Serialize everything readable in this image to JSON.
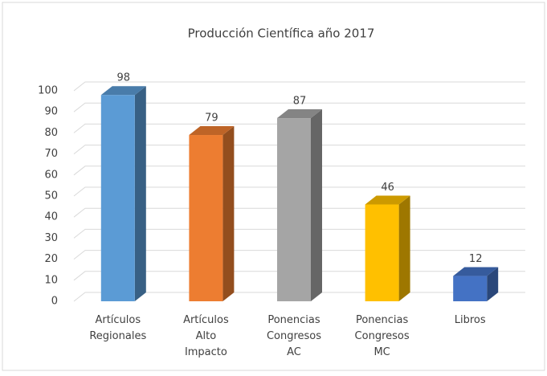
{
  "chart_data": {
    "type": "bar3d",
    "title": "Producción Científica año 2017",
    "categories": [
      [
        "Artículos",
        "Regionales"
      ],
      [
        "Artículos",
        "Alto",
        "Impacto"
      ],
      [
        "Ponencias",
        "Congresos",
        "AC"
      ],
      [
        "Ponencias",
        "Congresos",
        "MC"
      ],
      [
        "Libros"
      ]
    ],
    "values": [
      98,
      79,
      87,
      46,
      12
    ],
    "colors": [
      "#5b9bd5",
      "#ed7d31",
      "#a5a5a5",
      "#ffc000",
      "#4472c4"
    ],
    "ylim": [
      0,
      100
    ],
    "yticks": [
      0,
      10,
      20,
      30,
      40,
      50,
      60,
      70,
      80,
      90,
      100
    ],
    "grid": true
  }
}
